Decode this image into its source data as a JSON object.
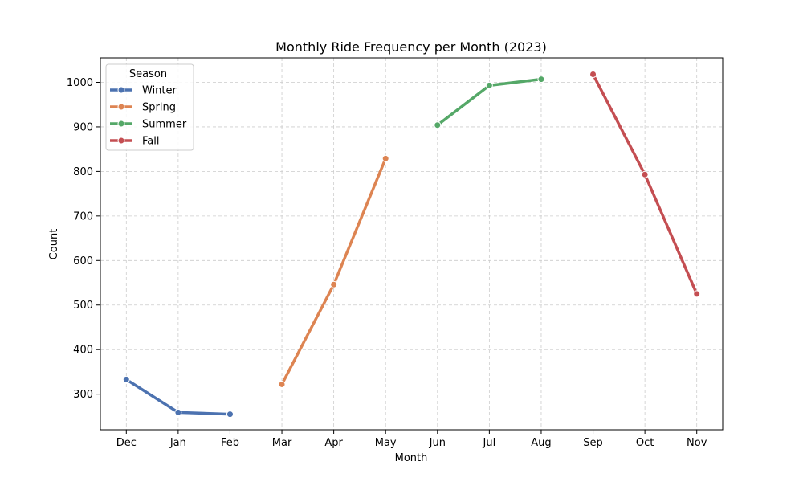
{
  "chart_data": {
    "type": "line",
    "title": "Monthly Ride Frequency per Month (2023)",
    "xlabel": "Month",
    "ylabel": "Count",
    "categories": [
      "Dec",
      "Jan",
      "Feb",
      "Mar",
      "Apr",
      "May",
      "Jun",
      "Jul",
      "Aug",
      "Sep",
      "Oct",
      "Nov"
    ],
    "ylim": [
      220,
      1055
    ],
    "yticks": [
      300,
      400,
      500,
      600,
      700,
      800,
      900,
      1000
    ],
    "grid": true,
    "legend": {
      "title": "Season",
      "placement": "top-left"
    },
    "series": [
      {
        "name": "Winter",
        "color": "#4c72b0",
        "x": [
          "Dec",
          "Jan",
          "Feb"
        ],
        "values": [
          333,
          259,
          255
        ]
      },
      {
        "name": "Spring",
        "color": "#dd8452",
        "x": [
          "Mar",
          "Apr",
          "May"
        ],
        "values": [
          322,
          546,
          829
        ]
      },
      {
        "name": "Summer",
        "color": "#55a868",
        "x": [
          "Jun",
          "Jul",
          "Aug"
        ],
        "values": [
          904,
          993,
          1007
        ]
      },
      {
        "name": "Fall",
        "color": "#c44e52",
        "x": [
          "Sep",
          "Oct",
          "Nov"
        ],
        "values": [
          1018,
          793,
          525
        ]
      }
    ]
  }
}
